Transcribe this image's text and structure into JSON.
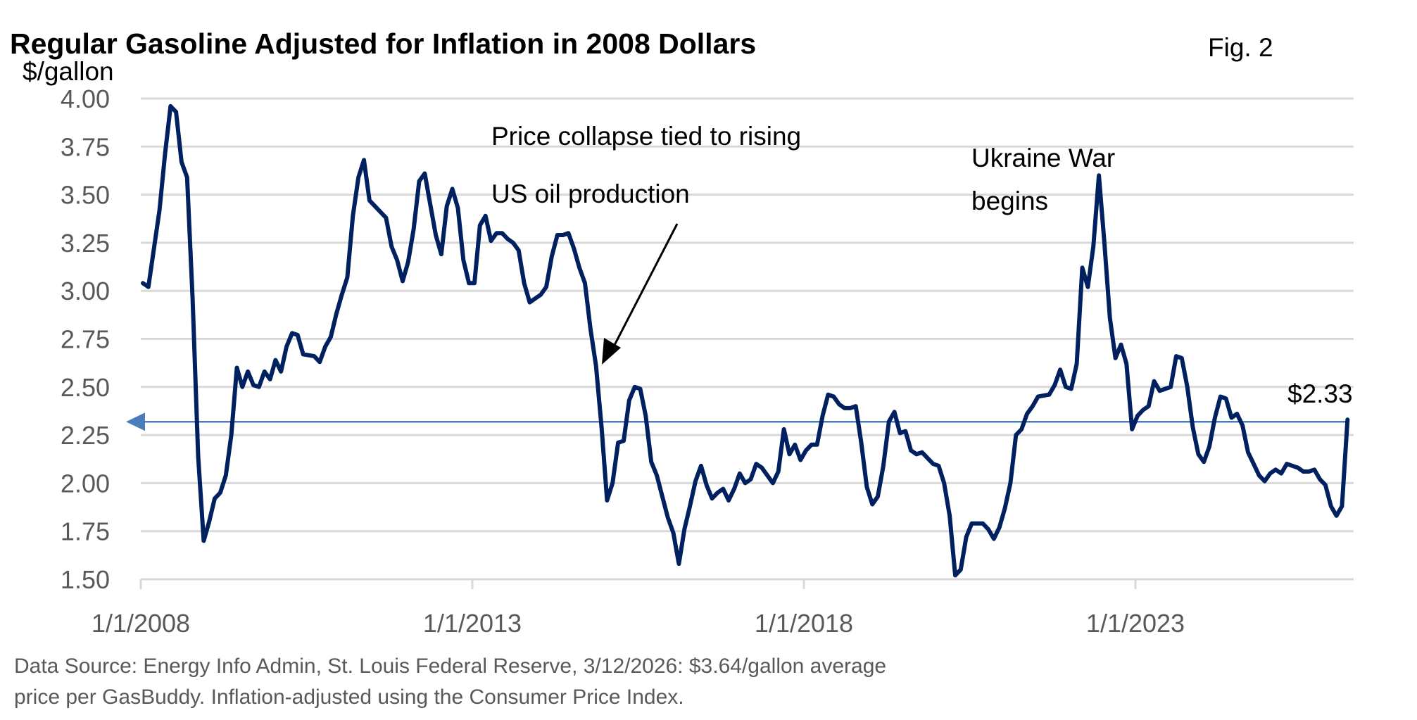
{
  "chart_data": {
    "type": "line",
    "title": "Regular Gasoline Adjusted for Inflation in 2008 Dollars",
    "figure_label": "Fig. 2",
    "ylabel": "$/gallon",
    "xlabel": "",
    "ylim": [
      1.5,
      4.0
    ],
    "yticks": [
      "4.00",
      "3.75",
      "3.50",
      "3.25",
      "3.00",
      "2.75",
      "2.50",
      "2.25",
      "2.00",
      "1.75",
      "1.50"
    ],
    "ytick_values": [
      4.0,
      3.75,
      3.5,
      3.25,
      3.0,
      2.75,
      2.5,
      2.25,
      2.0,
      1.75,
      1.5
    ],
    "xticks": [
      "1/1/2008",
      "1/1/2013",
      "1/1/2018",
      "1/1/2023"
    ],
    "xtick_years": [
      2008,
      2013,
      2018,
      2023
    ],
    "x_start": "2008-01",
    "x_frequency": "monthly",
    "x_end": "2026-03",
    "grid": true,
    "series": [
      {
        "name": "Regular gasoline, inflation-adjusted (2008 $)",
        "color": "#002060",
        "values": [
          3.04,
          3.02,
          3.22,
          3.42,
          3.71,
          3.96,
          3.93,
          3.67,
          3.59,
          2.96,
          2.14,
          1.7,
          1.8,
          1.92,
          1.95,
          2.04,
          2.25,
          2.6,
          2.5,
          2.58,
          2.51,
          2.5,
          2.58,
          2.54,
          2.64,
          2.58,
          2.71,
          2.78,
          2.77,
          2.67,
          2.665,
          2.66,
          2.63,
          2.71,
          2.76,
          2.88,
          2.98,
          3.07,
          3.39,
          3.59,
          3.68,
          3.47,
          3.44,
          3.41,
          3.38,
          3.23,
          3.16,
          3.05,
          3.15,
          3.32,
          3.57,
          3.61,
          3.45,
          3.29,
          3.19,
          3.44,
          3.53,
          3.43,
          3.16,
          3.04,
          3.04,
          3.34,
          3.39,
          3.26,
          3.3,
          3.3,
          3.27,
          3.25,
          3.21,
          3.04,
          2.94,
          2.96,
          2.98,
          3.02,
          3.18,
          3.29,
          3.29,
          3.3,
          3.22,
          3.12,
          3.04,
          2.8,
          2.61,
          2.29,
          1.91,
          2.0,
          2.21,
          2.22,
          2.43,
          2.5,
          2.49,
          2.35,
          2.11,
          2.04,
          1.93,
          1.82,
          1.74,
          1.58,
          1.76,
          1.88,
          2.01,
          2.09,
          1.99,
          1.92,
          1.95,
          1.97,
          1.91,
          1.97,
          2.05,
          2.0,
          2.02,
          2.1,
          2.08,
          2.04,
          2.0,
          2.06,
          2.28,
          2.15,
          2.2,
          2.12,
          2.17,
          2.2,
          2.2,
          2.35,
          2.46,
          2.45,
          2.41,
          2.39,
          2.39,
          2.4,
          2.21,
          1.98,
          1.89,
          1.93,
          2.09,
          2.32,
          2.37,
          2.26,
          2.27,
          2.17,
          2.15,
          2.16,
          2.13,
          2.1,
          2.09,
          2.0,
          1.83,
          1.52,
          1.55,
          1.72,
          1.79,
          1.79,
          1.79,
          1.76,
          1.71,
          1.77,
          1.87,
          2.0,
          2.25,
          2.28,
          2.36,
          2.4,
          2.45,
          2.455,
          2.46,
          2.51,
          2.59,
          2.5,
          2.49,
          2.62,
          3.12,
          3.02,
          3.23,
          3.6,
          3.25,
          2.86,
          2.65,
          2.72,
          2.62,
          2.28,
          2.35,
          2.38,
          2.4,
          2.53,
          2.48,
          2.49,
          2.5,
          2.66,
          2.65,
          2.5,
          2.29,
          2.15,
          2.11,
          2.19,
          2.34,
          2.45,
          2.44,
          2.34,
          2.36,
          2.3,
          2.16,
          2.1,
          2.04,
          2.01,
          2.05,
          2.07,
          2.05,
          2.1,
          2.09,
          2.08,
          2.06,
          2.06,
          2.07,
          2.02,
          1.99,
          1.88,
          1.83,
          1.88,
          2.33
        ]
      }
    ],
    "reference_line": {
      "value": 2.33,
      "label": "$2.33",
      "color": "#4a7ebb",
      "arrow_direction": "left"
    },
    "annotations": [
      {
        "lines": [
          "Price collapse tied to rising",
          "US oil production"
        ],
        "points_to": "2015-01 price drop",
        "arrow": true
      },
      {
        "lines": [
          "Ukraine War",
          "begins"
        ],
        "points_to": "2022 peak",
        "arrow": false
      }
    ],
    "source_note": [
      "Data Source: Energy Info Admin, St. Louis Federal Reserve, 3/12/2026: $3.64/gallon average",
      "price per GasBuddy. Inflation-adjusted using the Consumer Price Index."
    ]
  }
}
